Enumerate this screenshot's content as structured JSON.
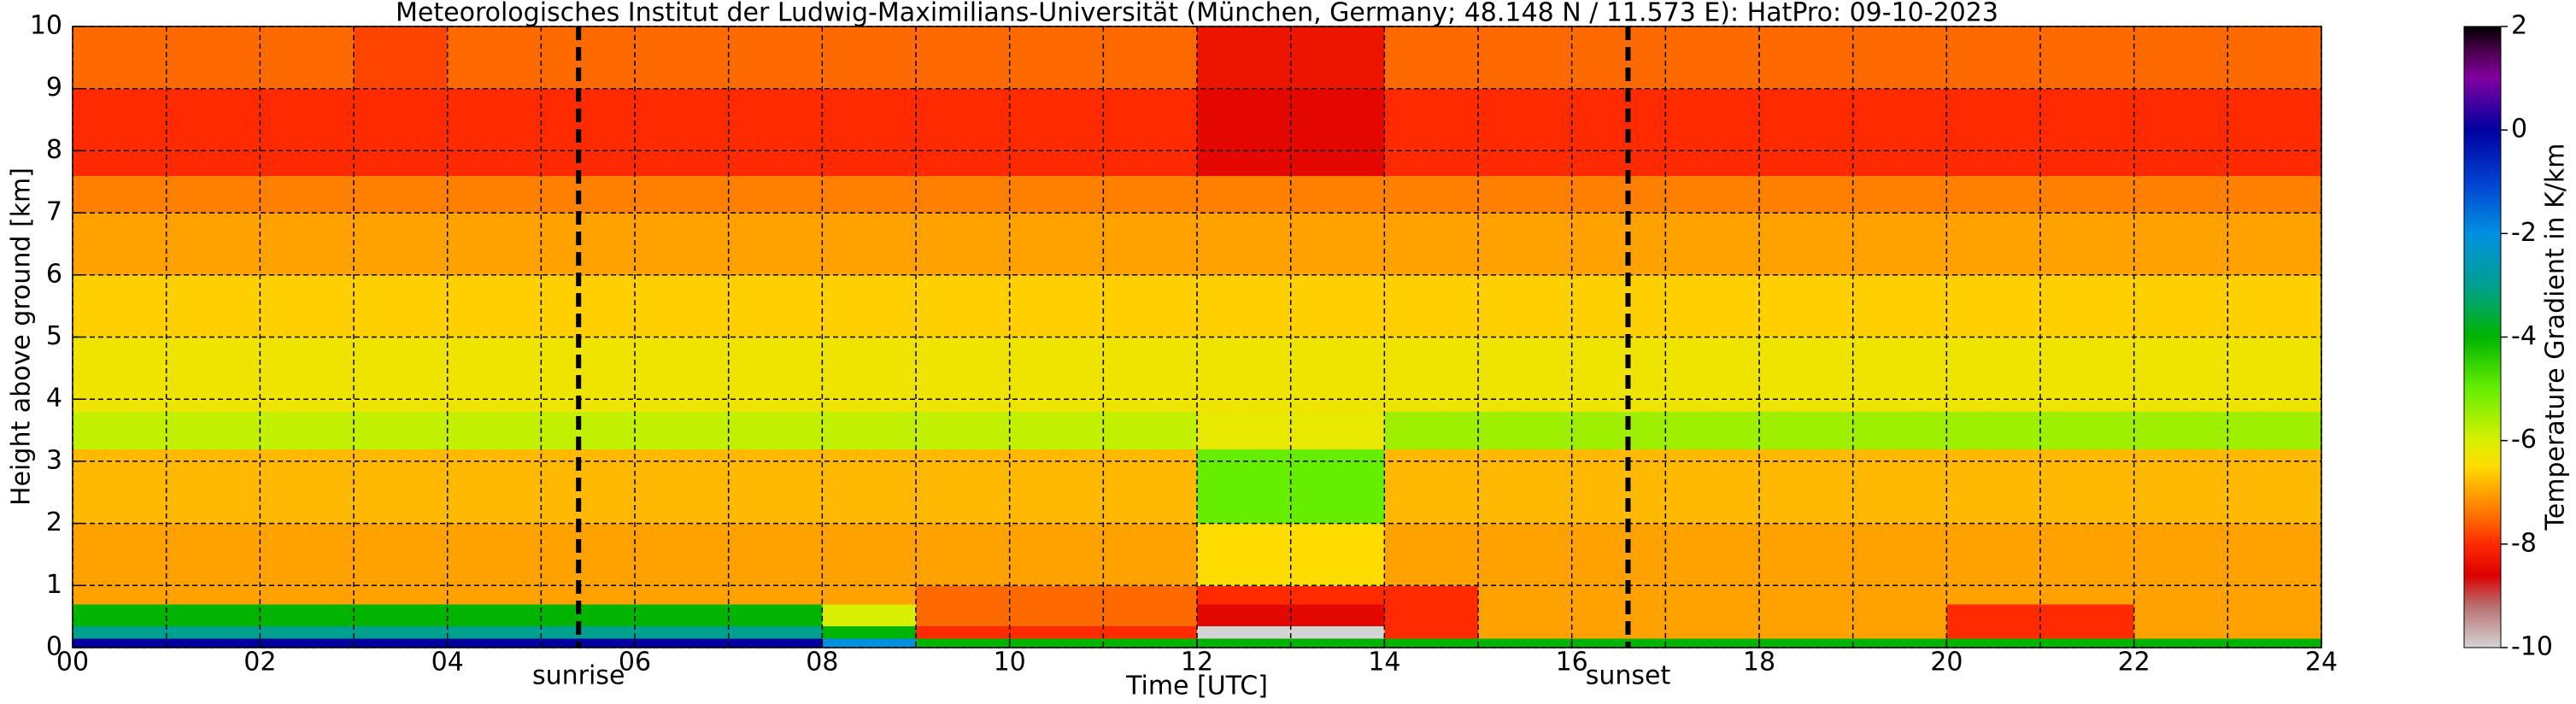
{
  "chart_data": {
    "type": "heatmap",
    "title": "Meteorologisches Institut der Ludwig-Maximilians-Universität (München, Germany; 48.148 N / 11.573 E):    HatPro: 09-10-2023",
    "x_label": "Time [UTC]",
    "y_label": "Height above ground [km]",
    "colorbar_label": "Temperature Gradient in K/km",
    "xlim": [
      0,
      24
    ],
    "ylim": [
      0,
      10
    ],
    "zlim": [
      -10,
      2
    ],
    "xticks": [
      {
        "value": 0,
        "label": "00"
      },
      {
        "value": 2,
        "label": "02"
      },
      {
        "value": 4,
        "label": "04"
      },
      {
        "value": 6,
        "label": "06"
      },
      {
        "value": 8,
        "label": "08"
      },
      {
        "value": 10,
        "label": "10"
      },
      {
        "value": 12,
        "label": "12"
      },
      {
        "value": 14,
        "label": "14"
      },
      {
        "value": 16,
        "label": "16"
      },
      {
        "value": 18,
        "label": "18"
      },
      {
        "value": 20,
        "label": "20"
      },
      {
        "value": 22,
        "label": "22"
      },
      {
        "value": 24,
        "label": "24"
      }
    ],
    "xminor_ticks": [
      1,
      3,
      5,
      7,
      9,
      11,
      13,
      15,
      17,
      19,
      21,
      23
    ],
    "yticks": [
      0,
      1,
      2,
      3,
      4,
      5,
      6,
      7,
      8,
      9,
      10
    ],
    "zticks": [
      -10,
      -8,
      -6,
      -4,
      -2,
      0,
      2
    ],
    "grid": true,
    "events": [
      {
        "label": "sunrise",
        "time": 5.4
      },
      {
        "label": "sunset",
        "time": 16.6
      }
    ],
    "colormap": [
      {
        "value": -10,
        "color": "#d4d4d4"
      },
      {
        "value": -9.2,
        "color": "#b87070"
      },
      {
        "value": -8.6,
        "color": "#dd0000"
      },
      {
        "value": -8,
        "color": "#ff2a00"
      },
      {
        "value": -7.5,
        "color": "#ff6a00"
      },
      {
        "value": -7,
        "color": "#ffa200"
      },
      {
        "value": -6.5,
        "color": "#ffdc00"
      },
      {
        "value": -6,
        "color": "#d8f000"
      },
      {
        "value": -5,
        "color": "#66ee00"
      },
      {
        "value": -4,
        "color": "#00b400"
      },
      {
        "value": -3,
        "color": "#00a090"
      },
      {
        "value": -2,
        "color": "#0090e0"
      },
      {
        "value": -1,
        "color": "#0040d0"
      },
      {
        "value": 0,
        "color": "#0000a0"
      },
      {
        "value": 1,
        "color": "#8000a0"
      },
      {
        "value": 1.5,
        "color": "#500050"
      },
      {
        "value": 2,
        "color": "#000000"
      }
    ],
    "xbins": [
      0,
      1,
      2,
      3,
      4,
      5,
      6,
      7,
      8,
      9,
      10,
      11,
      12,
      13,
      14,
      15,
      16,
      17,
      18,
      19,
      20,
      21,
      22,
      23,
      24
    ],
    "ybins": [
      0,
      0.15,
      0.35,
      0.7,
      1,
      2,
      3.2,
      3.8,
      5,
      6,
      7,
      7.6,
      9,
      10
    ],
    "z": [
      [
        0,
        0,
        0,
        0,
        0,
        0,
        0,
        0,
        -2,
        -4,
        -4,
        -4,
        -4,
        -4,
        -4,
        -4,
        -4,
        -4,
        -4,
        -4,
        -4,
        -4,
        -4,
        -4
      ],
      [
        -3,
        -3,
        -3,
        -3,
        -3,
        -3,
        -3,
        -3,
        -4,
        -8,
        -8,
        -8,
        -10,
        -10,
        -8,
        -7,
        -7,
        -7,
        -7,
        -7,
        -8,
        -8,
        -7,
        -7
      ],
      [
        -4,
        -4,
        -4,
        -4,
        -4,
        -4,
        -4,
        -4,
        -6,
        -7.5,
        -7.5,
        -7.5,
        -8.5,
        -8.5,
        -8,
        -7,
        -7,
        -7,
        -7,
        -7,
        -8,
        -8,
        -7,
        -7
      ],
      [
        -7,
        -7,
        -7,
        -7,
        -7,
        -7,
        -7,
        -7,
        -7,
        -7.5,
        -7.5,
        -7.5,
        -8,
        -8,
        -8,
        -7,
        -7,
        -7,
        -7,
        -7,
        -7,
        -7,
        -7,
        -7
      ],
      [
        -7,
        -7,
        -7,
        -7,
        -7,
        -7,
        -7,
        -7,
        -7,
        -7,
        -7,
        -7,
        -6.5,
        -6.5,
        -7,
        -7,
        -7,
        -7,
        -7,
        -7,
        -7,
        -7,
        -7,
        -7
      ],
      [
        -6.8,
        -6.8,
        -6.8,
        -6.8,
        -6.8,
        -6.8,
        -6.8,
        -6.8,
        -6.8,
        -6.8,
        -6.8,
        -6.8,
        -5,
        -5,
        -6.8,
        -6.8,
        -6.8,
        -6.8,
        -6.8,
        -6.8,
        -6.8,
        -6.8,
        -6.8,
        -6.8
      ],
      [
        -5.8,
        -5.8,
        -5.8,
        -5.8,
        -5.8,
        -5.8,
        -5.8,
        -5.8,
        -5.8,
        -5.8,
        -5.8,
        -5.8,
        -6.2,
        -6.2,
        -5.5,
        -5.5,
        -5.5,
        -5.5,
        -5.5,
        -5.5,
        -5.5,
        -5.5,
        -5.5,
        -5.5
      ],
      [
        -6.3,
        -6.3,
        -6.3,
        -6.3,
        -6.3,
        -6.3,
        -6.3,
        -6.3,
        -6.3,
        -6.3,
        -6.3,
        -6.3,
        -6.3,
        -6.3,
        -6.3,
        -6.3,
        -6.3,
        -6.3,
        -6.3,
        -6.3,
        -6.3,
        -6.3,
        -6.3,
        -6.3
      ],
      [
        -6.6,
        -6.6,
        -6.6,
        -6.6,
        -6.6,
        -6.6,
        -6.6,
        -6.6,
        -6.6,
        -6.6,
        -6.6,
        -6.6,
        -6.6,
        -6.6,
        -6.6,
        -6.6,
        -6.6,
        -6.6,
        -6.6,
        -6.6,
        -6.6,
        -6.6,
        -6.6,
        -6.6
      ],
      [
        -7,
        -7,
        -7,
        -7,
        -7,
        -7,
        -7,
        -7,
        -7,
        -7,
        -7,
        -7,
        -7,
        -7,
        -7,
        -7,
        -7,
        -7,
        -7,
        -7,
        -7,
        -7,
        -7,
        -7
      ],
      [
        -7.3,
        -7.3,
        -7.3,
        -7.3,
        -7.3,
        -7.3,
        -7.3,
        -7.3,
        -7.3,
        -7.3,
        -7.3,
        -7.3,
        -7.3,
        -7.3,
        -7.3,
        -7.3,
        -7.3,
        -7.3,
        -7.3,
        -7.3,
        -7.3,
        -7.3,
        -7.3,
        -7.3
      ],
      [
        -8,
        -8,
        -8,
        -8,
        -8,
        -8,
        -8,
        -8,
        -8,
        -8,
        -8,
        -8,
        -8.5,
        -8.5,
        -8,
        -8,
        -8,
        -8,
        -8,
        -8,
        -8,
        -8,
        -8,
        -8
      ],
      [
        -7.5,
        -7.5,
        -7.5,
        -7.8,
        -7.5,
        -7.5,
        -7.5,
        -7.5,
        -7.5,
        -7.5,
        -7.5,
        -7.5,
        -8.3,
        -8.3,
        -7.5,
        -7.5,
        -7.5,
        -7.5,
        -7.5,
        -7.5,
        -7.5,
        -7.5,
        -7.5,
        -7.5
      ]
    ]
  }
}
